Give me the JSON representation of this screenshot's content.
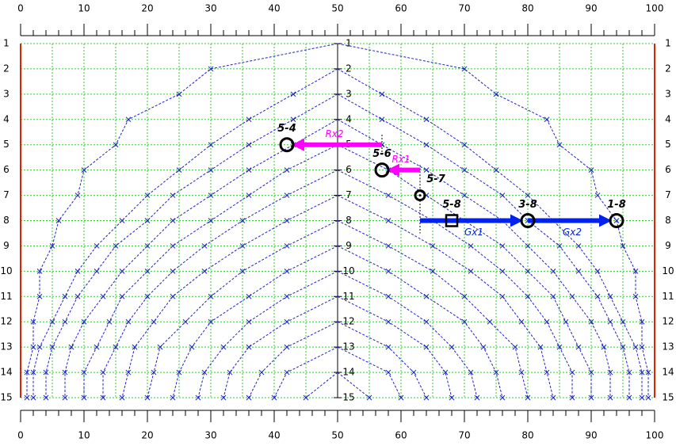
{
  "chart_data": {
    "type": "fan",
    "xlim": [
      0,
      100
    ],
    "ylim": [
      1,
      15
    ],
    "xticks": [
      0,
      10,
      20,
      30,
      40,
      50,
      60,
      70,
      80,
      90,
      100
    ],
    "xminor": [
      0,
      2,
      4,
      6,
      8,
      10,
      12,
      14,
      16,
      18,
      20,
      22,
      24,
      26,
      28,
      30,
      32,
      34,
      36,
      38,
      40,
      42,
      44,
      46,
      48,
      50,
      52,
      54,
      56,
      58,
      60,
      62,
      64,
      66,
      68,
      70,
      72,
      74,
      76,
      78,
      80,
      82,
      84,
      86,
      88,
      90,
      92,
      94,
      96,
      98,
      100
    ],
    "xgrid": [
      0,
      5,
      10,
      15,
      20,
      25,
      30,
      35,
      40,
      45,
      50,
      55,
      60,
      65,
      70,
      75,
      80,
      85,
      90,
      95,
      100
    ],
    "yticks": [
      1,
      2,
      3,
      4,
      5,
      6,
      7,
      8,
      9,
      10,
      11,
      12,
      13,
      14,
      15
    ],
    "center": 50,
    "curve_color": "#2020cc",
    "grid_color": "#33cc33",
    "edge_color": "#dd2200",
    "curves": [
      {
        "apex": 1,
        "offsets": [
          0,
          20,
          25,
          33,
          35,
          40,
          41,
          44,
          45,
          47,
          47,
          48,
          48,
          49,
          49
        ]
      },
      {
        "apex": 2,
        "offsets": [
          0,
          7,
          14,
          20,
          25,
          30,
          34,
          38,
          41,
          43,
          45,
          47,
          48,
          48
        ]
      },
      {
        "apex": 3,
        "offsets": [
          0,
          7,
          14,
          20,
          26,
          30,
          35,
          38,
          41,
          43,
          45,
          46,
          46
        ]
      },
      {
        "apex": 4,
        "offsets": [
          0,
          7,
          14,
          20,
          26,
          30,
          34,
          37,
          40,
          42,
          43,
          43
        ]
      },
      {
        "apex": 5,
        "offsets": [
          0,
          8,
          14,
          20,
          26,
          30,
          34,
          36,
          38,
          40,
          40
        ]
      },
      {
        "apex": 6,
        "offsets": [
          0,
          8,
          15,
          21,
          26,
          30,
          33,
          35,
          37,
          37
        ]
      },
      {
        "apex": 7,
        "offsets": [
          0,
          8,
          15,
          21,
          26,
          29,
          32,
          33,
          34
        ]
      },
      {
        "apex": 8,
        "offsets": [
          0,
          8,
          15,
          20,
          24,
          28,
          29,
          30
        ]
      },
      {
        "apex": 9,
        "offsets": [
          0,
          8,
          14,
          20,
          23,
          25,
          26
        ]
      },
      {
        "apex": 10,
        "offsets": [
          0,
          8,
          14,
          18,
          21,
          22
        ]
      },
      {
        "apex": 11,
        "offsets": [
          0,
          8,
          14,
          17,
          18
        ]
      },
      {
        "apex": 12,
        "offsets": [
          0,
          8,
          12,
          14
        ]
      },
      {
        "apex": 13,
        "offsets": [
          0,
          8,
          10
        ]
      },
      {
        "apex": 14,
        "offsets": [
          0,
          5
        ]
      }
    ],
    "guides": [
      {
        "x": 57,
        "y": [
          4.6,
          5.4
        ]
      },
      {
        "x": 63,
        "y": [
          5.8,
          6.8
        ]
      },
      {
        "x": 63,
        "y": [
          7.2,
          8.5
        ]
      }
    ],
    "arrows": [
      {
        "label": "Rx2",
        "color": "#ff00ff",
        "from": [
          57,
          5
        ],
        "to": [
          42,
          5
        ],
        "side": "above"
      },
      {
        "label": "Rx1",
        "color": "#ff00ff",
        "from": [
          63,
          6
        ],
        "to": [
          57,
          6
        ],
        "side": "above"
      },
      {
        "label": "Gx1",
        "color": "#0022ee",
        "from": [
          63,
          8
        ],
        "to": [
          80,
          8
        ],
        "side": "below"
      },
      {
        "label": "Gx2",
        "color": "#0022ee",
        "from": [
          80,
          8
        ],
        "to": [
          94,
          8
        ],
        "side": "below"
      }
    ],
    "points": [
      {
        "label": "5-4",
        "x": 42,
        "y": 5,
        "shape": "circle"
      },
      {
        "label": "5-6",
        "x": 57,
        "y": 6,
        "shape": "circle"
      },
      {
        "label": "5-7",
        "x": 63,
        "y": 7,
        "shape": "small-circle"
      },
      {
        "label": "5-8",
        "x": 68,
        "y": 8,
        "shape": "square"
      },
      {
        "label": "3-8",
        "x": 80,
        "y": 8,
        "shape": "circle"
      },
      {
        "label": "1-8",
        "x": 94,
        "y": 8,
        "shape": "circle"
      }
    ]
  }
}
